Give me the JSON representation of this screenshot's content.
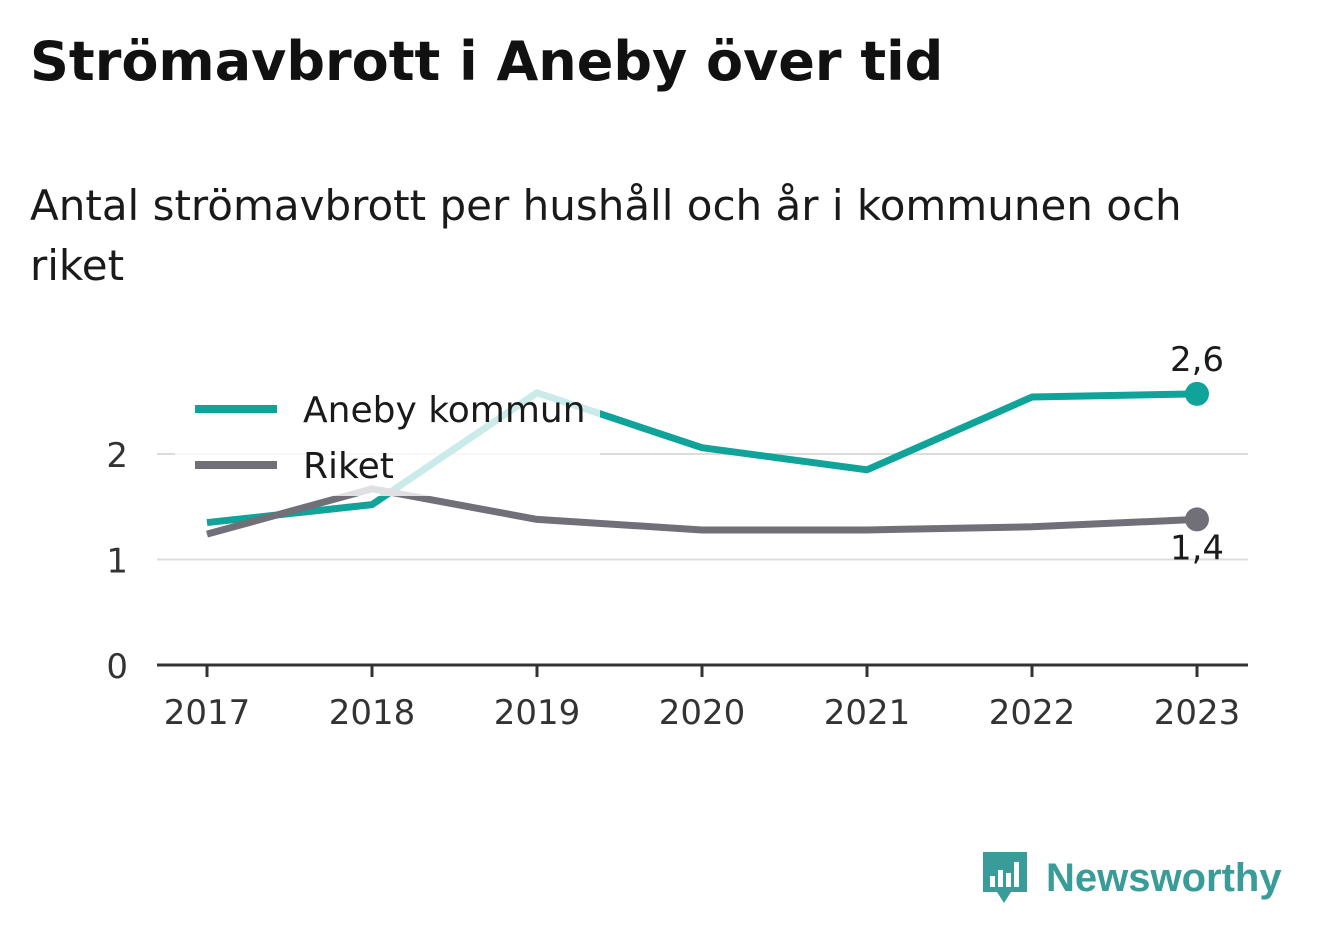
{
  "title": "Strömavbrott i Aneby över tid",
  "subtitle": "Antal strömavbrott per hushåll och år i kommunen och riket",
  "brand": {
    "name": "Newsworthy",
    "logo_icon": "bar-chart-speech-bubble-icon",
    "color": "#3a9c98"
  },
  "chart_data": {
    "type": "line",
    "categories": [
      "2017",
      "2018",
      "2019",
      "2020",
      "2021",
      "2022",
      "2023"
    ],
    "ylim": [
      0,
      2.8
    ],
    "yticks": [
      "0",
      "1",
      "2"
    ],
    "grid": true,
    "legend_position": "top-left",
    "series": [
      {
        "name": "Aneby kommun",
        "color": "#0fa39a",
        "values": [
          1.35,
          1.52,
          2.58,
          2.06,
          1.85,
          2.54,
          2.57
        ],
        "end_label": "2,6"
      },
      {
        "name": "Riket",
        "color": "#717078",
        "values": [
          1.24,
          1.67,
          1.38,
          1.28,
          1.28,
          1.31,
          1.38
        ],
        "end_label": "1,4"
      }
    ]
  }
}
